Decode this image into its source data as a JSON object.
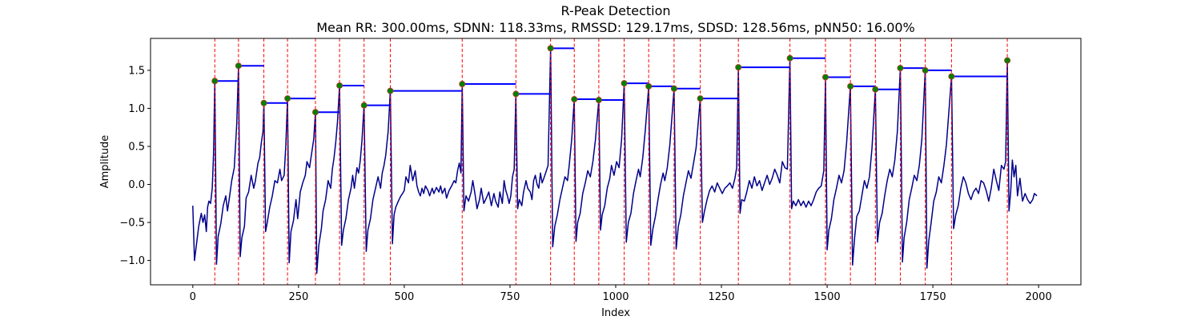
{
  "chart_data": {
    "type": "line",
    "title": "R-Peak Detection",
    "subtitle": "Mean RR: 300.00ms, SDNN: 118.33ms, RMSSD: 129.17ms, SDSD: 128.56ms, pNN50: 16.00%",
    "xlabel": "Index",
    "ylabel": "Amplitude",
    "xlim": [
      -100,
      2100
    ],
    "ylim": [
      -1.32,
      1.92
    ],
    "xticks": [
      0,
      250,
      500,
      750,
      1000,
      1250,
      1500,
      1750,
      2000
    ],
    "yticks": [
      -1.0,
      -0.5,
      0.0,
      0.5,
      1.0,
      1.5
    ],
    "ytick_labels": [
      "−1.0",
      "−0.5",
      "0.0",
      "0.5",
      "1.0",
      "1.5"
    ],
    "grid": false,
    "colors": {
      "signal": "#00008b",
      "peak_marker_fill": "#008000",
      "peak_marker_edge": "#c0392b",
      "peak_line": "#ff0000",
      "rr_segment": "#0000ff"
    },
    "signal": [
      [
        0,
        -0.28
      ],
      [
        4,
        -1.0
      ],
      [
        8,
        -0.82
      ],
      [
        14,
        -0.55
      ],
      [
        20,
        -0.38
      ],
      [
        24,
        -0.5
      ],
      [
        28,
        -0.4
      ],
      [
        32,
        -0.62
      ],
      [
        35,
        -0.3
      ],
      [
        38,
        -0.22
      ],
      [
        42,
        -0.25
      ],
      [
        46,
        -0.05
      ],
      [
        49,
        0.4
      ],
      [
        52,
        1.36
      ],
      [
        56,
        -1.05
      ],
      [
        60,
        -0.68
      ],
      [
        66,
        -0.52
      ],
      [
        72,
        -0.28
      ],
      [
        78,
        -0.15
      ],
      [
        82,
        -0.35
      ],
      [
        86,
        -0.2
      ],
      [
        92,
        0.05
      ],
      [
        98,
        0.22
      ],
      [
        104,
        0.8
      ],
      [
        108,
        1.56
      ],
      [
        112,
        -0.95
      ],
      [
        116,
        -0.7
      ],
      [
        122,
        -0.55
      ],
      [
        126,
        -0.18
      ],
      [
        132,
        -0.1
      ],
      [
        138,
        0.12
      ],
      [
        144,
        -0.05
      ],
      [
        148,
        0.05
      ],
      [
        154,
        0.28
      ],
      [
        158,
        0.35
      ],
      [
        162,
        0.55
      ],
      [
        166,
        0.7
      ],
      [
        168,
        1.07
      ],
      [
        172,
        -0.62
      ],
      [
        176,
        -0.5
      ],
      [
        182,
        -0.3
      ],
      [
        188,
        -0.15
      ],
      [
        194,
        0.05
      ],
      [
        200,
        0.02
      ],
      [
        206,
        0.2
      ],
      [
        210,
        0.05
      ],
      [
        216,
        0.12
      ],
      [
        220,
        0.52
      ],
      [
        224,
        1.13
      ],
      [
        228,
        -1.03
      ],
      [
        232,
        -0.62
      ],
      [
        238,
        -0.48
      ],
      [
        244,
        -0.2
      ],
      [
        248,
        -0.45
      ],
      [
        254,
        -0.1
      ],
      [
        260,
        0.02
      ],
      [
        266,
        0.12
      ],
      [
        270,
        0.3
      ],
      [
        276,
        0.22
      ],
      [
        282,
        0.45
      ],
      [
        286,
        0.6
      ],
      [
        290,
        0.95
      ],
      [
        293,
        -1.17
      ],
      [
        298,
        -0.8
      ],
      [
        304,
        -0.58
      ],
      [
        308,
        -0.35
      ],
      [
        314,
        -0.2
      ],
      [
        320,
        0.05
      ],
      [
        326,
        -0.05
      ],
      [
        330,
        0.2
      ],
      [
        334,
        0.35
      ],
      [
        338,
        0.55
      ],
      [
        342,
        0.82
      ],
      [
        347,
        1.3
      ],
      [
        352,
        -0.8
      ],
      [
        356,
        -0.6
      ],
      [
        362,
        -0.45
      ],
      [
        368,
        -0.2
      ],
      [
        374,
        -0.05
      ],
      [
        378,
        0.12
      ],
      [
        382,
        -0.05
      ],
      [
        388,
        0.22
      ],
      [
        392,
        0.15
      ],
      [
        396,
        0.32
      ],
      [
        400,
        0.58
      ],
      [
        405,
        1.04
      ],
      [
        410,
        -0.88
      ],
      [
        414,
        -0.6
      ],
      [
        420,
        -0.45
      ],
      [
        426,
        -0.2
      ],
      [
        432,
        -0.05
      ],
      [
        438,
        0.1
      ],
      [
        444,
        -0.05
      ],
      [
        448,
        0.15
      ],
      [
        452,
        0.25
      ],
      [
        456,
        0.38
      ],
      [
        462,
        0.7
      ],
      [
        467,
        1.23
      ],
      [
        472,
        -0.78
      ],
      [
        476,
        -0.4
      ],
      [
        480,
        -0.3
      ],
      [
        486,
        -0.22
      ],
      [
        492,
        -0.15
      ],
      [
        496,
        -0.12
      ],
      [
        500,
        -0.08
      ],
      [
        504,
        0.1
      ],
      [
        510,
        0.02
      ],
      [
        514,
        0.25
      ],
      [
        520,
        0.05
      ],
      [
        526,
        0.18
      ],
      [
        530,
        -0.02
      ],
      [
        534,
        -0.1
      ],
      [
        538,
        -0.15
      ],
      [
        542,
        -0.05
      ],
      [
        546,
        -0.12
      ],
      [
        550,
        -0.02
      ],
      [
        556,
        -0.08
      ],
      [
        560,
        -0.15
      ],
      [
        566,
        -0.05
      ],
      [
        570,
        -0.12
      ],
      [
        576,
        -0.04
      ],
      [
        582,
        -0.1
      ],
      [
        586,
        -0.02
      ],
      [
        590,
        -0.12
      ],
      [
        596,
        -0.05
      ],
      [
        600,
        -0.18
      ],
      [
        606,
        -0.08
      ],
      [
        612,
        -0.02
      ],
      [
        618,
        0.05
      ],
      [
        622,
        0.02
      ],
      [
        626,
        0.18
      ],
      [
        630,
        0.28
      ],
      [
        634,
        0.15
      ],
      [
        637,
        1.32
      ],
      [
        641,
        -0.35
      ],
      [
        646,
        -0.15
      ],
      [
        652,
        -0.22
      ],
      [
        658,
        -0.1
      ],
      [
        662,
        0.05
      ],
      [
        668,
        -0.15
      ],
      [
        672,
        -0.32
      ],
      [
        678,
        -0.2
      ],
      [
        682,
        -0.05
      ],
      [
        688,
        -0.25
      ],
      [
        694,
        -0.18
      ],
      [
        700,
        -0.1
      ],
      [
        706,
        -0.28
      ],
      [
        712,
        -0.12
      ],
      [
        716,
        -0.22
      ],
      [
        722,
        -0.3
      ],
      [
        726,
        -0.1
      ],
      [
        732,
        -0.25
      ],
      [
        736,
        0.05
      ],
      [
        740,
        -0.08
      ],
      [
        744,
        -0.15
      ],
      [
        748,
        -0.25
      ],
      [
        752,
        -0.15
      ],
      [
        756,
        0.1
      ],
      [
        760,
        0.2
      ],
      [
        764,
        1.19
      ],
      [
        768,
        -0.32
      ],
      [
        772,
        -0.2
      ],
      [
        778,
        -0.28
      ],
      [
        782,
        -0.1
      ],
      [
        788,
        0.05
      ],
      [
        792,
        -0.05
      ],
      [
        798,
        -0.1
      ],
      [
        802,
        -0.2
      ],
      [
        806,
        0.05
      ],
      [
        810,
        0.12
      ],
      [
        814,
        0.0
      ],
      [
        818,
        -0.05
      ],
      [
        822,
        0.15
      ],
      [
        826,
        0.02
      ],
      [
        830,
        0.08
      ],
      [
        836,
        0.18
      ],
      [
        840,
        0.25
      ],
      [
        846,
        1.79
      ],
      [
        851,
        -0.82
      ],
      [
        856,
        -0.55
      ],
      [
        862,
        -0.4
      ],
      [
        868,
        -0.2
      ],
      [
        874,
        -0.05
      ],
      [
        880,
        0.1
      ],
      [
        886,
        0.05
      ],
      [
        890,
        0.25
      ],
      [
        896,
        0.6
      ],
      [
        902,
        1.12
      ],
      [
        906,
        -0.75
      ],
      [
        910,
        -0.5
      ],
      [
        916,
        -0.38
      ],
      [
        922,
        -0.12
      ],
      [
        928,
        0.02
      ],
      [
        934,
        0.18
      ],
      [
        940,
        0.1
      ],
      [
        946,
        0.3
      ],
      [
        952,
        0.58
      ],
      [
        960,
        1.11
      ],
      [
        964,
        -0.6
      ],
      [
        968,
        -0.4
      ],
      [
        974,
        -0.28
      ],
      [
        980,
        -0.05
      ],
      [
        986,
        0.08
      ],
      [
        990,
        0.25
      ],
      [
        996,
        0.12
      ],
      [
        1002,
        0.3
      ],
      [
        1008,
        0.22
      ],
      [
        1014,
        0.6
      ],
      [
        1020,
        1.33
      ],
      [
        1025,
        -0.76
      ],
      [
        1030,
        -0.5
      ],
      [
        1036,
        -0.38
      ],
      [
        1042,
        -0.12
      ],
      [
        1048,
        0.05
      ],
      [
        1054,
        0.2
      ],
      [
        1058,
        0.1
      ],
      [
        1064,
        0.35
      ],
      [
        1070,
        0.72
      ],
      [
        1078,
        1.29
      ],
      [
        1083,
        -0.8
      ],
      [
        1088,
        -0.58
      ],
      [
        1094,
        -0.42
      ],
      [
        1100,
        -0.2
      ],
      [
        1106,
        0.0
      ],
      [
        1112,
        0.15
      ],
      [
        1116,
        0.05
      ],
      [
        1122,
        0.22
      ],
      [
        1128,
        0.52
      ],
      [
        1138,
        1.26
      ],
      [
        1143,
        -0.85
      ],
      [
        1148,
        -0.55
      ],
      [
        1154,
        -0.4
      ],
      [
        1160,
        -0.15
      ],
      [
        1166,
        0.02
      ],
      [
        1172,
        0.18
      ],
      [
        1178,
        0.08
      ],
      [
        1184,
        0.28
      ],
      [
        1190,
        0.48
      ],
      [
        1200,
        1.13
      ],
      [
        1205,
        -0.5
      ],
      [
        1210,
        -0.35
      ],
      [
        1216,
        -0.2
      ],
      [
        1222,
        -0.08
      ],
      [
        1228,
        -0.02
      ],
      [
        1234,
        -0.1
      ],
      [
        1240,
        0.02
      ],
      [
        1246,
        -0.05
      ],
      [
        1252,
        -0.12
      ],
      [
        1258,
        -0.05
      ],
      [
        1264,
        -0.02
      ],
      [
        1270,
        0.02
      ],
      [
        1276,
        -0.05
      ],
      [
        1282,
        0.08
      ],
      [
        1286,
        0.22
      ],
      [
        1290,
        1.54
      ],
      [
        1294,
        -0.38
      ],
      [
        1298,
        -0.2
      ],
      [
        1304,
        -0.22
      ],
      [
        1310,
        -0.1
      ],
      [
        1316,
        0.05
      ],
      [
        1322,
        -0.05
      ],
      [
        1328,
        0.1
      ],
      [
        1334,
        -0.02
      ],
      [
        1340,
        0.05
      ],
      [
        1346,
        -0.08
      ],
      [
        1352,
        0.02
      ],
      [
        1358,
        0.12
      ],
      [
        1364,
        0.0
      ],
      [
        1370,
        0.08
      ],
      [
        1376,
        0.2
      ],
      [
        1382,
        0.12
      ],
      [
        1388,
        0.02
      ],
      [
        1394,
        0.3
      ],
      [
        1400,
        0.22
      ],
      [
        1406,
        0.2
      ],
      [
        1412,
        1.66
      ],
      [
        1416,
        -0.32
      ],
      [
        1420,
        -0.22
      ],
      [
        1426,
        -0.28
      ],
      [
        1432,
        -0.2
      ],
      [
        1438,
        -0.28
      ],
      [
        1444,
        -0.22
      ],
      [
        1450,
        -0.3
      ],
      [
        1456,
        -0.22
      ],
      [
        1462,
        -0.28
      ],
      [
        1468,
        -0.2
      ],
      [
        1474,
        -0.1
      ],
      [
        1480,
        -0.05
      ],
      [
        1486,
        -0.02
      ],
      [
        1492,
        0.18
      ],
      [
        1496,
        1.41
      ],
      [
        1500,
        -0.86
      ],
      [
        1504,
        -0.6
      ],
      [
        1510,
        -0.45
      ],
      [
        1516,
        -0.2
      ],
      [
        1522,
        -0.05
      ],
      [
        1528,
        0.12
      ],
      [
        1534,
        0.02
      ],
      [
        1540,
        0.18
      ],
      [
        1546,
        0.55
      ],
      [
        1555,
        1.29
      ],
      [
        1560,
        -1.06
      ],
      [
        1565,
        -0.7
      ],
      [
        1570,
        -0.42
      ],
      [
        1576,
        -0.35
      ],
      [
        1582,
        -0.15
      ],
      [
        1588,
        0.05
      ],
      [
        1594,
        -0.05
      ],
      [
        1600,
        0.1
      ],
      [
        1606,
        0.48
      ],
      [
        1614,
        1.25
      ],
      [
        1619,
        -0.76
      ],
      [
        1624,
        -0.5
      ],
      [
        1630,
        -0.38
      ],
      [
        1636,
        -0.15
      ],
      [
        1642,
        0.05
      ],
      [
        1648,
        0.2
      ],
      [
        1654,
        0.1
      ],
      [
        1660,
        0.32
      ],
      [
        1666,
        0.7
      ],
      [
        1673,
        1.53
      ],
      [
        1678,
        -1.02
      ],
      [
        1682,
        -0.7
      ],
      [
        1688,
        -0.5
      ],
      [
        1694,
        -0.2
      ],
      [
        1700,
        -0.05
      ],
      [
        1706,
        0.12
      ],
      [
        1712,
        0.05
      ],
      [
        1718,
        0.25
      ],
      [
        1724,
        0.6
      ],
      [
        1732,
        1.5
      ],
      [
        1736,
        -1.1
      ],
      [
        1740,
        -0.75
      ],
      [
        1746,
        -0.5
      ],
      [
        1752,
        -0.22
      ],
      [
        1758,
        -0.1
      ],
      [
        1764,
        0.1
      ],
      [
        1770,
        0.02
      ],
      [
        1776,
        0.25
      ],
      [
        1782,
        0.52
      ],
      [
        1794,
        1.42
      ],
      [
        1799,
        -0.58
      ],
      [
        1804,
        -0.4
      ],
      [
        1810,
        -0.28
      ],
      [
        1816,
        -0.05
      ],
      [
        1822,
        0.1
      ],
      [
        1828,
        0.02
      ],
      [
        1834,
        -0.12
      ],
      [
        1840,
        -0.2
      ],
      [
        1846,
        -0.1
      ],
      [
        1852,
        -0.05
      ],
      [
        1858,
        -0.12
      ],
      [
        1864,
        0.05
      ],
      [
        1870,
        0.02
      ],
      [
        1876,
        -0.08
      ],
      [
        1882,
        -0.22
      ],
      [
        1888,
        -0.05
      ],
      [
        1894,
        0.2
      ],
      [
        1900,
        0.05
      ],
      [
        1906,
        -0.08
      ],
      [
        1912,
        0.25
      ],
      [
        1918,
        0.2
      ],
      [
        1922,
        0.3
      ],
      [
        1926,
        1.63
      ],
      [
        1930,
        -0.35
      ],
      [
        1934,
        -0.1
      ],
      [
        1938,
        0.32
      ],
      [
        1942,
        0.1
      ],
      [
        1946,
        0.25
      ],
      [
        1950,
        -0.15
      ],
      [
        1956,
        0.08
      ],
      [
        1962,
        -0.22
      ],
      [
        1968,
        -0.12
      ],
      [
        1974,
        -0.2
      ],
      [
        1980,
        -0.25
      ],
      [
        1986,
        -0.2
      ],
      [
        1990,
        -0.12
      ],
      [
        1996,
        -0.15
      ]
    ],
    "peaks": [
      {
        "x": 52,
        "y": 1.36
      },
      {
        "x": 108,
        "y": 1.56
      },
      {
        "x": 168,
        "y": 1.07
      },
      {
        "x": 224,
        "y": 1.13
      },
      {
        "x": 290,
        "y": 0.95
      },
      {
        "x": 347,
        "y": 1.3
      },
      {
        "x": 405,
        "y": 1.04
      },
      {
        "x": 467,
        "y": 1.23
      },
      {
        "x": 637,
        "y": 1.32
      },
      {
        "x": 764,
        "y": 1.19
      },
      {
        "x": 846,
        "y": 1.79
      },
      {
        "x": 902,
        "y": 1.12
      },
      {
        "x": 960,
        "y": 1.11
      },
      {
        "x": 1020,
        "y": 1.33
      },
      {
        "x": 1078,
        "y": 1.29
      },
      {
        "x": 1138,
        "y": 1.26
      },
      {
        "x": 1200,
        "y": 1.13
      },
      {
        "x": 1290,
        "y": 1.54
      },
      {
        "x": 1412,
        "y": 1.66
      },
      {
        "x": 1496,
        "y": 1.41
      },
      {
        "x": 1555,
        "y": 1.29
      },
      {
        "x": 1614,
        "y": 1.25
      },
      {
        "x": 1673,
        "y": 1.53
      },
      {
        "x": 1732,
        "y": 1.5
      },
      {
        "x": 1794,
        "y": 1.42
      },
      {
        "x": 1926,
        "y": 1.63
      }
    ]
  }
}
